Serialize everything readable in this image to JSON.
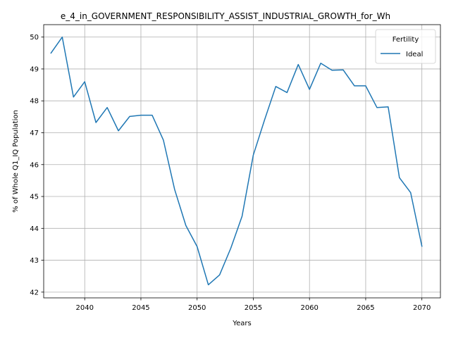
{
  "chart_data": {
    "type": "line",
    "title": "e_4_in_GOVERNMENT_RESPONSIBILITY_ASSIST_INDUSTRIAL_GROWTH_for_Wh",
    "xlabel": "Years",
    "ylabel": "% of Whole Q1_IQ Population",
    "xlim": [
      2036.35,
      2071.65
    ],
    "ylim": [
      41.82,
      50.39
    ],
    "xticks": [
      2040,
      2045,
      2050,
      2055,
      2060,
      2065,
      2070
    ],
    "yticks": [
      42,
      43,
      44,
      45,
      46,
      47,
      48,
      49,
      50
    ],
    "grid": true,
    "legend": {
      "title": "Fertility",
      "placement": "upper-right"
    },
    "series": [
      {
        "name": "Ideal",
        "color": "#1f77b4",
        "x": [
          2037,
          2038,
          2039,
          2040,
          2041,
          2042,
          2043,
          2044,
          2045,
          2046,
          2047,
          2048,
          2049,
          2050,
          2051,
          2052,
          2053,
          2054,
          2055,
          2056,
          2057,
          2058,
          2059,
          2060,
          2061,
          2062,
          2063,
          2064,
          2065,
          2066,
          2067,
          2068,
          2069,
          2070
        ],
        "y": [
          49.5,
          50.0,
          48.12,
          48.6,
          47.32,
          47.79,
          47.06,
          47.51,
          47.55,
          47.55,
          46.77,
          45.22,
          44.09,
          43.43,
          42.23,
          42.54,
          43.38,
          44.38,
          46.3,
          47.4,
          48.45,
          48.26,
          49.14,
          48.36,
          49.18,
          48.96,
          48.97,
          48.47,
          48.47,
          47.79,
          47.81,
          45.59,
          45.12,
          43.44
        ]
      }
    ]
  }
}
